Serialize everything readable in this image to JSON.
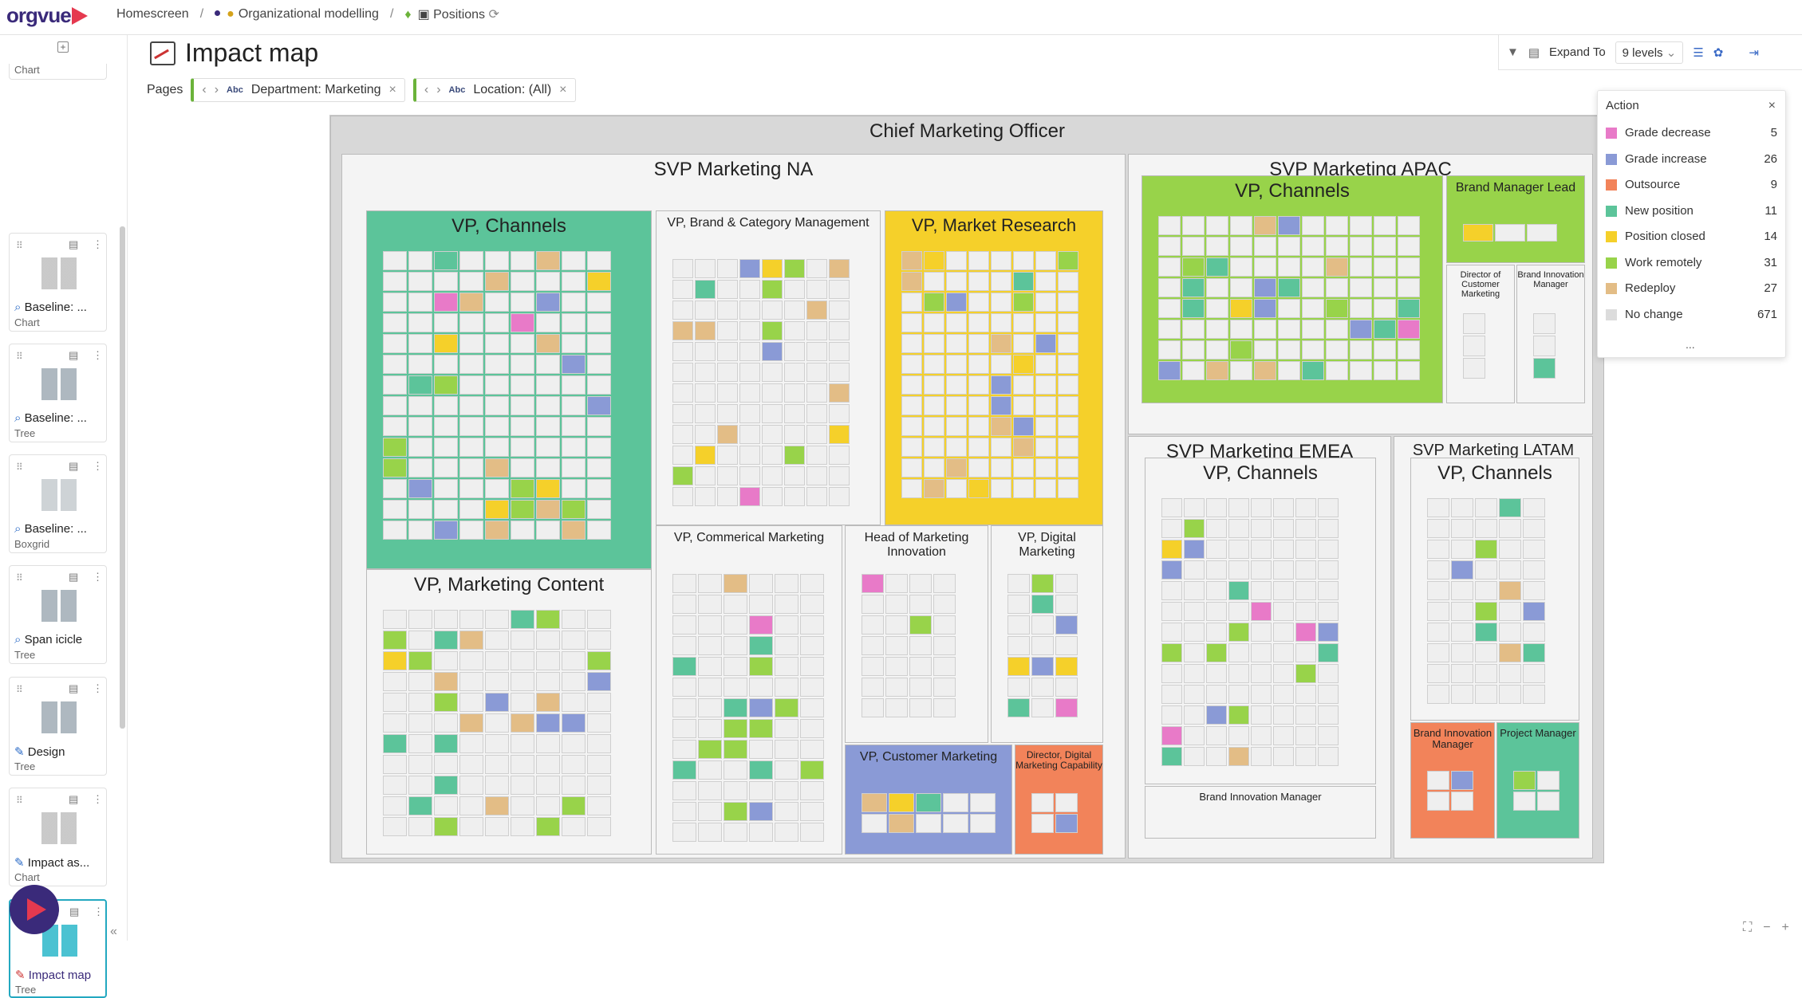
{
  "app": {
    "logo": "orgvue"
  },
  "breadcrumb": {
    "home": "Homescreen",
    "dataset": "Organizational modelling",
    "view": "Positions",
    "sep1": "/",
    "sep2": "/"
  },
  "sidebar": {
    "items": [
      {
        "label": "Chart",
        "type": ""
      },
      {
        "label": "Baseline: ...",
        "type": "Chart"
      },
      {
        "label": "Baseline: ...",
        "type": "Tree"
      },
      {
        "label": "Baseline: ...",
        "type": "Boxgrid"
      },
      {
        "label": "Span icicle",
        "type": "Tree"
      },
      {
        "label": "Design",
        "type": "Tree"
      },
      {
        "label": "Impact as...",
        "type": "Chart"
      },
      {
        "label": "Impact map",
        "type": "Tree"
      }
    ]
  },
  "header": {
    "title": "Impact map",
    "pages_label": "Pages",
    "filters": [
      {
        "type": "Abc",
        "label": "Department: Marketing"
      },
      {
        "type": "Abc",
        "label": "Location: (All)"
      }
    ]
  },
  "toolbar": {
    "expand_label": "Expand To",
    "levels": "9 levels"
  },
  "legend": {
    "title": "Action",
    "more": "...",
    "items": [
      {
        "name": "Grade decrease",
        "count": "5",
        "color": "#e87ac8"
      },
      {
        "name": "Grade increase",
        "count": "26",
        "color": "#8a9ad6"
      },
      {
        "name": "Outsource",
        "count": "9",
        "color": "#f2835a"
      },
      {
        "name": "New position",
        "count": "11",
        "color": "#5cc49a"
      },
      {
        "name": "Position closed",
        "count": "14",
        "color": "#f5d02a"
      },
      {
        "name": "Work remotely",
        "count": "31",
        "color": "#98d34a"
      },
      {
        "name": "Redeploy",
        "count": "27",
        "color": "#e3bd86"
      },
      {
        "name": "No change",
        "count": "671",
        "color": "#dcdcdc"
      }
    ]
  },
  "map": {
    "root": "Chief Marketing Officer",
    "na": "SVP Marketing NA",
    "apac": "SVP Marketing APAC",
    "emea": "SVP Marketing EMEA",
    "latam": "SVP Marketing LATAM",
    "na_channels": "VP, Channels",
    "na_brand": "VP, Brand & Category Management",
    "na_research": "VP, Market Research",
    "na_content": "VP, Marketing Content",
    "na_commercial": "VP, Commerical Marketing",
    "na_innovation": "Head of Marketing Innovation",
    "na_digital": "VP, Digital Marketing",
    "na_customer": "VP, Customer Marketing",
    "na_digcap": "Director, Digital Marketing Capability",
    "apac_channels": "VP, Channels",
    "apac_brandlead": "Brand Manager Lead",
    "apac_director": "Director of Customer Marketing",
    "apac_brandinnov": "Brand Innovation Manager",
    "emea_channels": "VP, Channels",
    "emea_brandinnov": "Brand Innovation Manager",
    "latam_channels": "VP, Channels",
    "latam_brandinnov": "Brand Innovation Manager",
    "latam_project": "Project Manager"
  }
}
